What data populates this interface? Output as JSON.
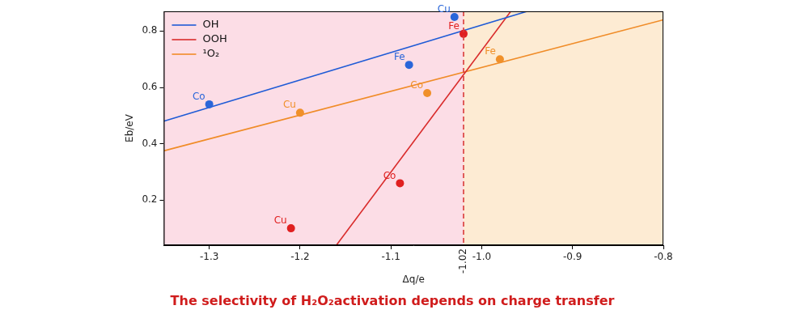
{
  "chart_data": {
    "type": "scatter",
    "title": "The selectivity of H₂O₂activation depends on charge transfer",
    "x_label": "Δq/e",
    "y_label": "Eb/eV",
    "xlim": [
      -1.35,
      -0.8
    ],
    "xticks": [
      -1.3,
      -1.2,
      -1.1,
      {
        "value": -1,
        "label": "-1.0"
      },
      -0.9,
      -0.8
    ],
    "ylim": [
      0.04,
      0.87
    ],
    "yticks": [
      0.2,
      0.4,
      0.6,
      0.8
    ],
    "grid": false,
    "legend": "upper left",
    "vline": {
      "value": -1.02,
      "label": "-1.02",
      "line_style": "dashed"
    },
    "series": [
      {
        "name": "OH",
        "type": "line",
        "color": "#1f5bd6",
        "x": [
          -1.35,
          -0.95
        ],
        "values": [
          0.48,
          0.87
        ]
      },
      {
        "name": "OOH",
        "type": "line",
        "color": "#d92b2b",
        "x": [
          -1.16,
          -0.968
        ],
        "values": [
          0.04,
          0.87
        ]
      },
      {
        "name": "¹O₂",
        "type": "line",
        "color": "#f08c28",
        "x": [
          -1.35,
          -0.8
        ],
        "values": [
          0.375,
          0.84
        ]
      },
      {
        "type": "scatter",
        "color": "#2a66d9",
        "marker": "circle",
        "x": [
          -1.3,
          -1.08,
          -1.03
        ],
        "values": [
          0.54,
          0.68,
          0.85
        ],
        "labels": [
          "Co",
          "Fe",
          "Cu"
        ]
      },
      {
        "type": "scatter",
        "color": "#e02020",
        "marker": "circle",
        "x": [
          -1.21,
          -1.09,
          -1.02
        ],
        "values": [
          0.1,
          0.26,
          0.79
        ],
        "labels": [
          "Cu",
          "Co",
          "Fe"
        ]
      },
      {
        "type": "scatter",
        "color": "#f0902a",
        "marker": "circle",
        "x": [
          -1.2,
          -1.06,
          -0.98
        ],
        "values": [
          0.51,
          0.58,
          0.7
        ],
        "labels": [
          "Cu",
          "Co",
          "Fe"
        ]
      }
    ]
  }
}
